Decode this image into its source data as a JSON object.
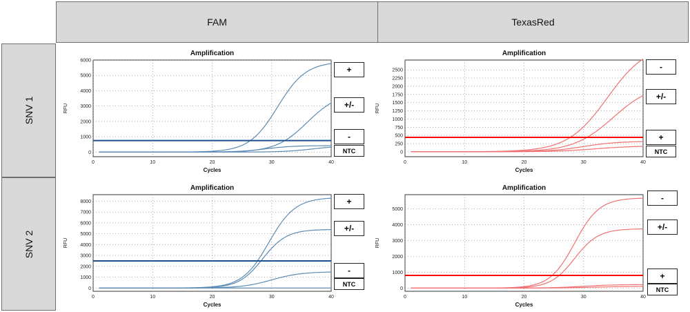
{
  "header": {
    "col1": "FAM",
    "col2": "TexasRed",
    "row1": "SNV 1",
    "row2": "SNV 2"
  },
  "colors": {
    "fam": "#5b8ab5",
    "fam_threshold": "#1f4e8c",
    "texasred": "#f07070",
    "texasred_threshold": "#ff0000",
    "header_bg": "#d9d9d9"
  },
  "chart_data": [
    {
      "type": "line",
      "panel": "SNV 1 / FAM",
      "title": "Amplification",
      "xlabel": "Cycles",
      "ylabel": "RFU",
      "xlim": [
        0,
        40
      ],
      "ylim": [
        -300,
        6000
      ],
      "xticks": [
        0,
        10,
        20,
        30,
        40
      ],
      "yticks": [
        0,
        1000,
        2000,
        3000,
        4000,
        5000,
        6000
      ],
      "grid": true,
      "threshold": 750,
      "series": [
        {
          "baseline": 0,
          "plateau": 5900,
          "mid": 31,
          "k": 0.42
        },
        {
          "baseline": 0,
          "plateau": 3900,
          "mid": 36,
          "k": 0.38
        },
        {
          "baseline": 0,
          "plateau": 420,
          "mid": 29,
          "k": 0.45
        },
        {
          "baseline": 0,
          "plateau": 420,
          "mid": 37,
          "k": 0.4
        }
      ],
      "labels": [
        "+",
        "+/-",
        "-",
        "NTC"
      ]
    },
    {
      "type": "line",
      "panel": "SNV 1 / TexasRed",
      "title": "Amplification",
      "xlabel": "Cycles",
      "ylabel": "RFU",
      "xlim": [
        0,
        40
      ],
      "ylim": [
        -150,
        2800
      ],
      "xticks": [
        0,
        10,
        20,
        30,
        40
      ],
      "yticks": [
        0,
        250,
        500,
        750,
        1000,
        1250,
        1500,
        1750,
        2000,
        2250,
        2500
      ],
      "grid": true,
      "threshold": 440,
      "series": [
        {
          "baseline": 0,
          "plateau": 3300,
          "mid": 34,
          "k": 0.3
        },
        {
          "baseline": 0,
          "plateau": 2100,
          "mid": 35,
          "k": 0.3
        },
        {
          "baseline": 0,
          "plateau": 320,
          "mid": 30,
          "k": 0.35
        },
        {
          "baseline": 0,
          "plateau": 180,
          "mid": 32,
          "k": 0.3
        }
      ],
      "labels": [
        "-",
        "+/-",
        "+",
        "NTC"
      ]
    },
    {
      "type": "line",
      "panel": "SNV 2 / FAM",
      "title": "Amplification",
      "xlabel": "Cycles",
      "ylabel": "RFU",
      "xlim": [
        0,
        40
      ],
      "ylim": [
        -300,
        8600
      ],
      "xticks": [
        0,
        10,
        20,
        30,
        40
      ],
      "yticks": [
        0,
        1000,
        2000,
        3000,
        4000,
        5000,
        6000,
        7000,
        8000
      ],
      "grid": true,
      "threshold": 2500,
      "series": [
        {
          "baseline": 0,
          "plateau": 8350,
          "mid": 29.5,
          "k": 0.45
        },
        {
          "baseline": 0,
          "plateau": 5400,
          "mid": 28.5,
          "k": 0.5
        },
        {
          "baseline": 0,
          "plateau": 1500,
          "mid": 30,
          "k": 0.4
        },
        {
          "baseline": 0,
          "plateau": 0,
          "mid": 30,
          "k": 0.4
        }
      ],
      "labels": [
        "+",
        "+/-",
        "-",
        "NTC"
      ]
    },
    {
      "type": "line",
      "panel": "SNV 2 / TexasRed",
      "title": "Amplification",
      "xlabel": "Cycles",
      "ylabel": "RFU",
      "xlim": [
        0,
        40
      ],
      "ylim": [
        -200,
        5900
      ],
      "xticks": [
        0,
        10,
        20,
        30,
        40
      ],
      "yticks": [
        0,
        1000,
        2000,
        3000,
        4000,
        5000
      ],
      "grid": true,
      "threshold": 800,
      "series": [
        {
          "baseline": 0,
          "plateau": 5700,
          "mid": 28.5,
          "k": 0.48
        },
        {
          "baseline": 0,
          "plateau": 3750,
          "mid": 28.5,
          "k": 0.5
        },
        {
          "baseline": 0,
          "plateau": 230,
          "mid": 30,
          "k": 0.35
        },
        {
          "baseline": 0,
          "plateau": 120,
          "mid": 32,
          "k": 0.3
        }
      ],
      "labels": [
        "-",
        "+/-",
        "+",
        "NTC"
      ]
    }
  ]
}
